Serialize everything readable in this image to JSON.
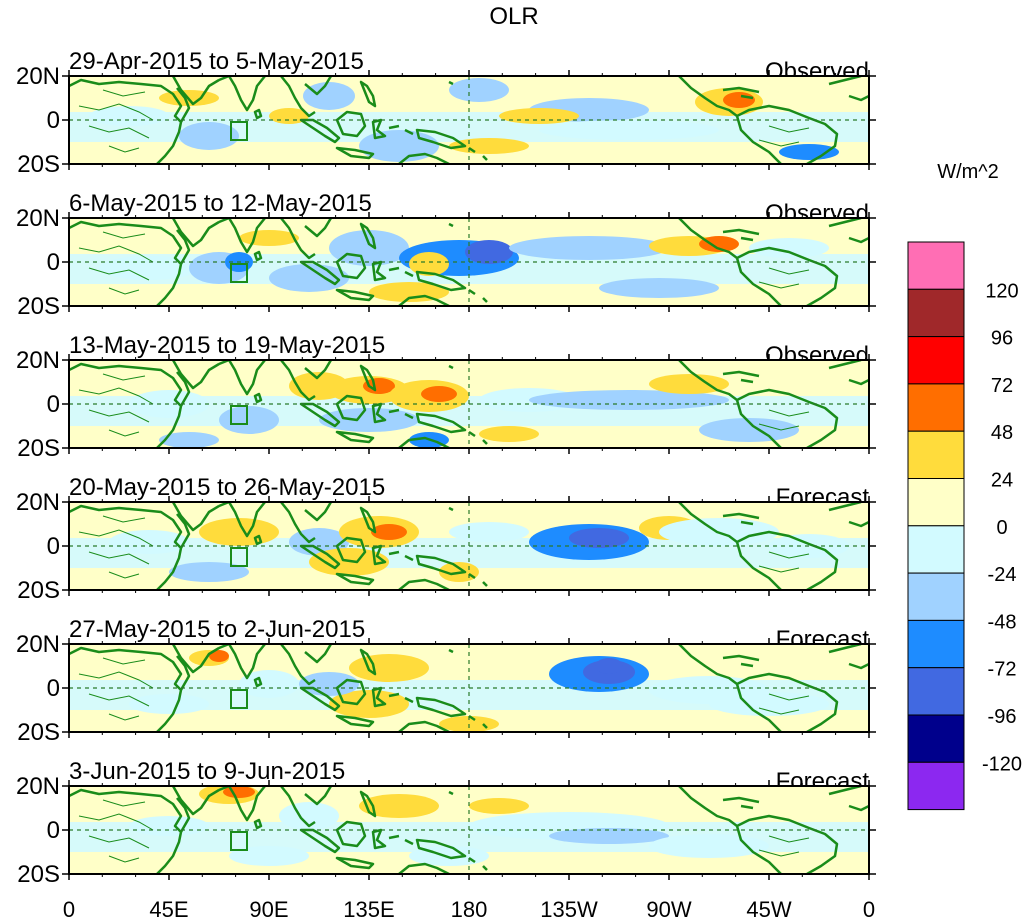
{
  "title": "OLR",
  "unit": "W/m^2",
  "lat_labels": [
    "20N",
    "0",
    "20S"
  ],
  "lon_labels": [
    "0",
    "45E",
    "90E",
    "135E",
    "180",
    "135W",
    "90W",
    "45W",
    "0"
  ],
  "panels": [
    {
      "period": "29-Apr-2015 to 5-May-2015",
      "type": "Observed"
    },
    {
      "period": "6-May-2015 to 12-May-2015",
      "type": "Observed"
    },
    {
      "period": "13-May-2015 to 19-May-2015",
      "type": "Observed"
    },
    {
      "period": "20-May-2015 to 26-May-2015",
      "type": "Forecast"
    },
    {
      "period": "27-May-2015 to 2-Jun-2015",
      "type": "Forecast"
    },
    {
      "period": "3-Jun-2015 to 9-Jun-2015",
      "type": "Forecast"
    }
  ],
  "colorbar": {
    "labels": [
      "120",
      "96",
      "72",
      "48",
      "24",
      "0",
      "-24",
      "-48",
      "-72",
      "-96",
      "-120"
    ],
    "colors": [
      "#ff6eb4",
      "#a0282a",
      "#ff0000",
      "#ff6e00",
      "#ffdc3c",
      "#ffffc8",
      "#d2faff",
      "#a0d2ff",
      "#1e8cff",
      "#4169e1",
      "#00008c",
      "#8c28f0"
    ]
  },
  "colors": {
    "coast": "#1a8c1a",
    "dashed": "#2a7a2a",
    "neutral_pos": "#ffffc8",
    "neutral_neg": "#d2faff"
  },
  "map_features": {
    "box_marker": "box-marker-icon"
  }
}
